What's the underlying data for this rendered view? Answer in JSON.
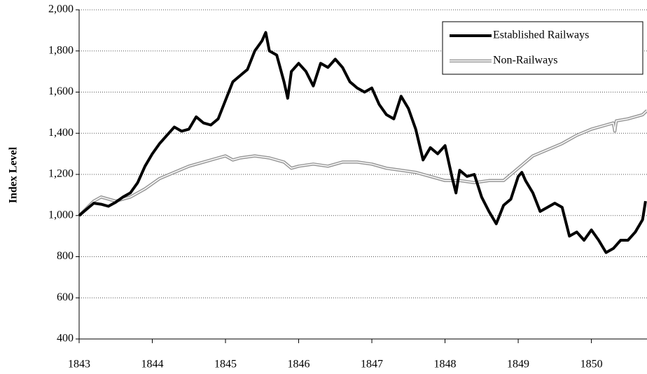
{
  "chart_data": {
    "type": "line",
    "y_label": "Index Level",
    "xlim": [
      1843,
      1850.76
    ],
    "ylim": [
      400,
      2000
    ],
    "xticks": [
      1843,
      1844,
      1845,
      1846,
      1847,
      1848,
      1849,
      1850
    ],
    "yticks": [
      400,
      600,
      800,
      {
        "value": 1000,
        "label": "1,000"
      },
      {
        "value": 1200,
        "label": "1,200"
      },
      {
        "value": 1400,
        "label": "1,400"
      },
      {
        "value": 1600,
        "label": "1,600"
      },
      {
        "value": 1800,
        "label": "1,800"
      },
      {
        "value": 2000,
        "label": "2,000"
      }
    ],
    "grid": true,
    "legend": "top-right",
    "series": [
      {
        "name": "Established Railways",
        "color": "#000000",
        "style": "solid",
        "x": [
          1843,
          1843.1,
          1843.2,
          1843.3,
          1843.4,
          1843.5,
          1843.6,
          1843.7,
          1843.8,
          1843.9,
          1844,
          1844.1,
          1844.2,
          1844.3,
          1844.4,
          1844.5,
          1844.6,
          1844.7,
          1844.8,
          1844.9,
          1845,
          1845.1,
          1845.2,
          1845.3,
          1845.4,
          1845.5,
          1845.55,
          1845.6,
          1845.7,
          1845.8,
          1845.85,
          1845.9,
          1846,
          1846.1,
          1846.2,
          1846.3,
          1846.4,
          1846.5,
          1846.6,
          1846.7,
          1846.8,
          1846.9,
          1847,
          1847.1,
          1847.2,
          1847.3,
          1847.4,
          1847.5,
          1847.6,
          1847.7,
          1847.8,
          1847.9,
          1848,
          1848.1,
          1848.15,
          1848.2,
          1848.3,
          1848.4,
          1848.5,
          1848.6,
          1848.7,
          1848.8,
          1848.9,
          1849,
          1849.05,
          1849.1,
          1849.2,
          1849.3,
          1849.4,
          1849.5,
          1849.6,
          1849.7,
          1849.8,
          1849.9,
          1850,
          1850.1,
          1850.2,
          1850.3,
          1850.4,
          1850.5,
          1850.6,
          1850.7,
          1850.74
        ],
        "values": [
          1000,
          1030,
          1060,
          1055,
          1045,
          1065,
          1090,
          1110,
          1160,
          1240,
          1300,
          1350,
          1390,
          1430,
          1410,
          1420,
          1480,
          1450,
          1440,
          1470,
          1560,
          1650,
          1680,
          1710,
          1800,
          1850,
          1890,
          1800,
          1780,
          1650,
          1570,
          1700,
          1740,
          1700,
          1630,
          1740,
          1720,
          1760,
          1720,
          1650,
          1620,
          1600,
          1620,
          1540,
          1490,
          1470,
          1580,
          1520,
          1420,
          1270,
          1330,
          1300,
          1340,
          1180,
          1110,
          1220,
          1190,
          1200,
          1090,
          1020,
          960,
          1050,
          1080,
          1190,
          1210,
          1170,
          1110,
          1020,
          1040,
          1060,
          1040,
          900,
          920,
          880,
          930,
          880,
          820,
          840,
          880,
          880,
          920,
          980,
          1070
        ]
      },
      {
        "name": "Non-Railways",
        "color": "#999999",
        "style": "double",
        "x": [
          1843,
          1843.2,
          1843.3,
          1843.5,
          1843.7,
          1843.9,
          1844.1,
          1844.3,
          1844.5,
          1844.7,
          1844.9,
          1845,
          1845.1,
          1845.2,
          1845.4,
          1845.6,
          1845.8,
          1845.9,
          1846,
          1846.2,
          1846.4,
          1846.6,
          1846.8,
          1847,
          1847.2,
          1847.4,
          1847.6,
          1847.8,
          1848,
          1848.2,
          1848.4,
          1848.6,
          1848.8,
          1849,
          1849.2,
          1849.4,
          1849.6,
          1849.8,
          1850,
          1850.2,
          1850.3,
          1850.32,
          1850.34,
          1850.5,
          1850.7,
          1850.76
        ],
        "values": [
          1000,
          1070,
          1090,
          1070,
          1090,
          1130,
          1180,
          1210,
          1240,
          1260,
          1280,
          1290,
          1270,
          1280,
          1290,
          1280,
          1260,
          1230,
          1240,
          1250,
          1240,
          1260,
          1260,
          1250,
          1230,
          1220,
          1210,
          1190,
          1170,
          1170,
          1160,
          1170,
          1170,
          1230,
          1290,
          1320,
          1350,
          1390,
          1420,
          1440,
          1450,
          1410,
          1460,
          1470,
          1490,
          1510
        ]
      }
    ]
  }
}
